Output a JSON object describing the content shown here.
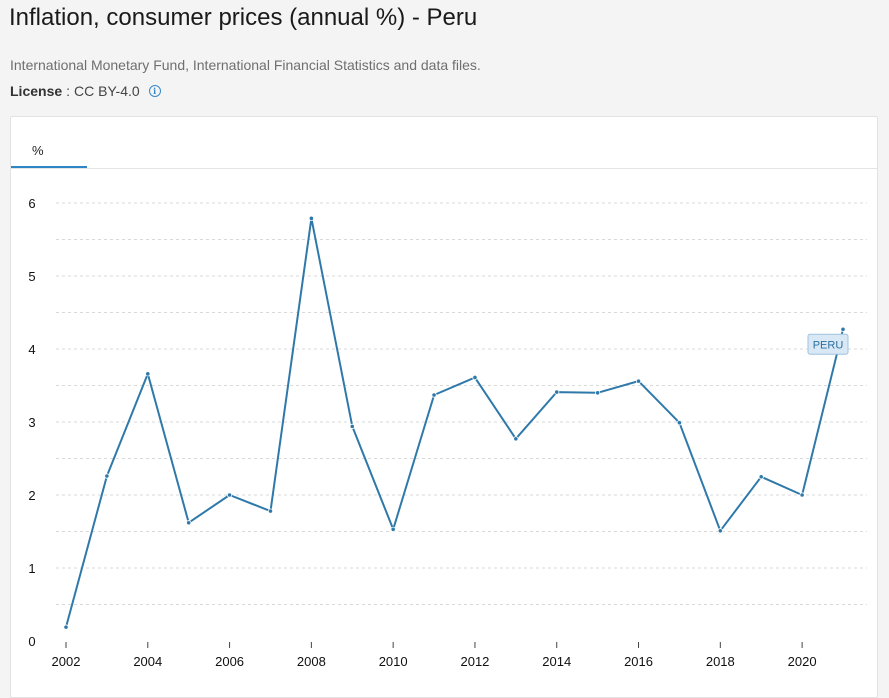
{
  "header": {
    "title": "Inflation, consumer prices (annual %) - Peru",
    "source": "International Monetary Fund, International Financial Statistics and data files.",
    "license_label": "License",
    "license_value": "CC BY-4.0",
    "info_glyph": "i"
  },
  "tabs": [
    {
      "label": "%",
      "active": true
    }
  ],
  "chart_data": {
    "type": "line",
    "title": "",
    "xlabel": "",
    "ylabel": "",
    "x": [
      2002,
      2003,
      2004,
      2005,
      2006,
      2007,
      2008,
      2009,
      2010,
      2011,
      2012,
      2013,
      2014,
      2015,
      2016,
      2017,
      2018,
      2019,
      2020,
      2021
    ],
    "series": [
      {
        "name": "PERU",
        "values": [
          0.19,
          2.26,
          3.66,
          1.62,
          2.0,
          1.78,
          5.79,
          2.94,
          1.53,
          3.37,
          3.61,
          2.77,
          3.41,
          3.4,
          3.56,
          2.99,
          1.51,
          2.25,
          2.0,
          4.27
        ]
      }
    ],
    "xlim": [
      2002,
      2021
    ],
    "ylim": [
      0,
      6
    ],
    "y_ticks": [
      0,
      1,
      2,
      3,
      4,
      5,
      6
    ],
    "x_ticks": [
      2002,
      2004,
      2006,
      2008,
      2010,
      2012,
      2014,
      2016,
      2018,
      2020
    ],
    "grid": true,
    "colors": {
      "line": "#2f79aa",
      "grid": "#d9d9d9",
      "label_bg": "#d9e8f5",
      "label_border": "#9fc2e0",
      "label_text": "#2f6f9f"
    }
  }
}
